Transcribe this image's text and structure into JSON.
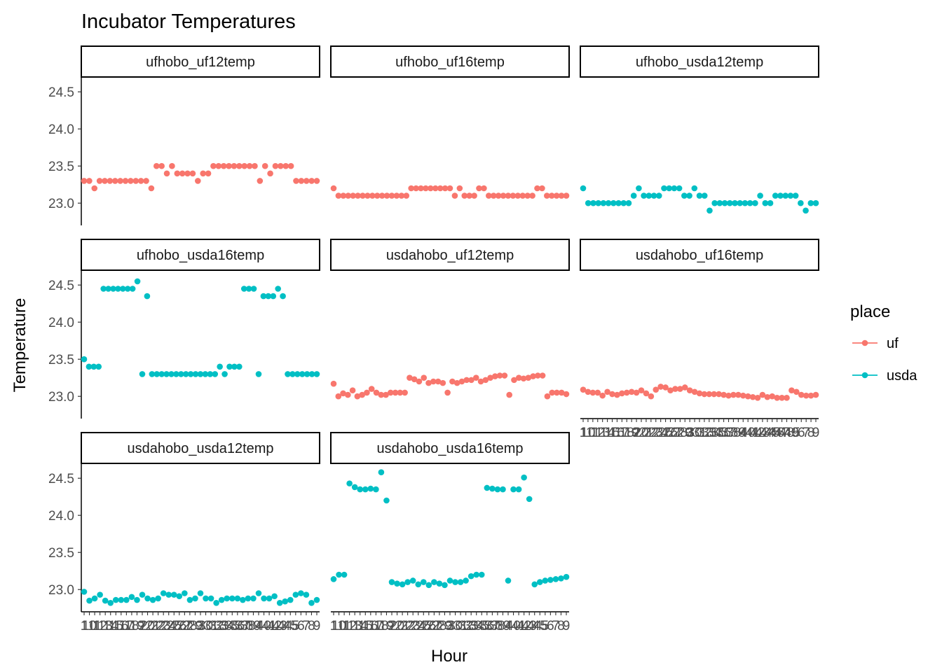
{
  "chart_data": {
    "type": "scatter",
    "title": "Incubator Temperatures",
    "xlabel": "Hour",
    "ylabel": "Temperature",
    "ylim": [
      22.7,
      24.7
    ],
    "y_ticks": [
      "23.0",
      "23.5",
      "24.0",
      "24.5"
    ],
    "x_axis": "discrete hours 1–49 (lexical order), tick labels overlapping",
    "facets_layout": "3 columns x 3 rows, free x, shared y",
    "legend": {
      "title": "place",
      "position": "right",
      "entries": [
        {
          "name": "uf",
          "color": "#F8766D"
        },
        {
          "name": "usda",
          "color": "#00BFC4"
        }
      ]
    },
    "panels": [
      {
        "name": "ufhobo_uf12temp",
        "place": "uf",
        "values": [
          23.3,
          23.3,
          23.2,
          23.3,
          23.3,
          23.3,
          23.3,
          23.3,
          23.3,
          23.3,
          23.3,
          23.3,
          23.3,
          23.2,
          23.5,
          23.5,
          23.4,
          23.5,
          23.4,
          23.4,
          23.4,
          23.4,
          23.3,
          23.4,
          23.4,
          23.5,
          23.5,
          23.5,
          23.5,
          23.5,
          23.5,
          23.5,
          23.5,
          23.5,
          23.3,
          23.5,
          23.4,
          23.5,
          23.5,
          23.5,
          23.5,
          23.3,
          23.3,
          23.3,
          23.3,
          23.3
        ]
      },
      {
        "name": "ufhobo_uf16temp",
        "place": "uf",
        "values": [
          23.2,
          23.1,
          23.1,
          23.1,
          23.1,
          23.1,
          23.1,
          23.1,
          23.1,
          23.1,
          23.1,
          23.1,
          23.1,
          23.1,
          23.1,
          23.1,
          23.2,
          23.2,
          23.2,
          23.2,
          23.2,
          23.2,
          23.2,
          23.2,
          23.2,
          23.1,
          23.2,
          23.1,
          23.1,
          23.1,
          23.2,
          23.2,
          23.1,
          23.1,
          23.1,
          23.1,
          23.1,
          23.1,
          23.1,
          23.1,
          23.1,
          23.1,
          23.2,
          23.2,
          23.1,
          23.1,
          23.1,
          23.1,
          23.1
        ]
      },
      {
        "name": "ufhobo_usda12temp",
        "place": "usda",
        "values": [
          23.2,
          23.0,
          23.0,
          23.0,
          23.0,
          23.0,
          23.0,
          23.0,
          23.0,
          23.0,
          23.1,
          23.2,
          23.1,
          23.1,
          23.1,
          23.1,
          23.2,
          23.2,
          23.2,
          23.2,
          23.1,
          23.1,
          23.2,
          23.1,
          23.1,
          22.9,
          23.0,
          23.0,
          23.0,
          23.0,
          23.0,
          23.0,
          23.0,
          23.0,
          23.0,
          23.1,
          23.0,
          23.0,
          23.1,
          23.1,
          23.1,
          23.1,
          23.1,
          23.0,
          22.9,
          23.0,
          23.0
        ]
      },
      {
        "name": "ufhobo_usda16temp",
        "place": "usda",
        "values": [
          23.5,
          23.4,
          23.4,
          23.4,
          24.45,
          24.45,
          24.45,
          24.45,
          24.45,
          24.45,
          24.45,
          24.55,
          23.3,
          24.35,
          23.3,
          23.3,
          23.3,
          23.3,
          23.3,
          23.3,
          23.3,
          23.3,
          23.3,
          23.3,
          23.3,
          23.3,
          23.3,
          23.3,
          23.4,
          23.3,
          23.4,
          23.4,
          23.4,
          24.45,
          24.45,
          24.45,
          23.3,
          24.35,
          24.35,
          24.35,
          24.45,
          24.35,
          23.3,
          23.3,
          23.3,
          23.3,
          23.3,
          23.3,
          23.3
        ]
      },
      {
        "name": "usdahobo_uf12temp",
        "place": "uf",
        "values": [
          23.17,
          23.0,
          23.04,
          23.02,
          23.08,
          23.0,
          23.02,
          23.05,
          23.1,
          23.05,
          23.02,
          23.02,
          23.05,
          23.05,
          23.05,
          23.05,
          23.25,
          23.23,
          23.2,
          23.25,
          23.18,
          23.2,
          23.2,
          23.18,
          23.05,
          23.2,
          23.18,
          23.2,
          23.22,
          23.22,
          23.25,
          23.2,
          23.22,
          23.25,
          23.27,
          23.28,
          23.28,
          23.02,
          23.22,
          23.25,
          23.24,
          23.25,
          23.27,
          23.28,
          23.28,
          23.0,
          23.05,
          23.05,
          23.05,
          23.03
        ]
      },
      {
        "name": "usdahobo_uf16temp",
        "place": "uf",
        "values": [
          23.09,
          23.06,
          23.05,
          23.05,
          23.01,
          23.06,
          23.03,
          23.02,
          23.04,
          23.05,
          23.06,
          23.05,
          23.08,
          23.04,
          23.0,
          23.09,
          23.13,
          23.12,
          23.08,
          23.1,
          23.1,
          23.12,
          23.08,
          23.06,
          23.04,
          23.03,
          23.03,
          23.03,
          23.03,
          23.02,
          23.01,
          23.02,
          23.02,
          23.01,
          23.0,
          22.99,
          22.98,
          23.02,
          22.99,
          23.0,
          22.98,
          22.98,
          22.98,
          23.08,
          23.06,
          23.02,
          23.01,
          23.01,
          23.02
        ]
      },
      {
        "name": "usdahobo_usda12temp",
        "place": "usda",
        "values": [
          22.97,
          22.85,
          22.88,
          22.93,
          22.85,
          22.82,
          22.86,
          22.86,
          22.86,
          22.9,
          22.86,
          22.93,
          22.88,
          22.86,
          22.88,
          22.95,
          22.93,
          22.93,
          22.91,
          22.95,
          22.86,
          22.88,
          22.95,
          22.88,
          22.88,
          22.82,
          22.86,
          22.88,
          22.88,
          22.88,
          22.86,
          22.88,
          22.88,
          22.95,
          22.88,
          22.88,
          22.91,
          22.82,
          22.84,
          22.86,
          22.93,
          22.95,
          22.93,
          22.82,
          22.86
        ]
      },
      {
        "name": "usdahobo_usda16temp",
        "place": "usda",
        "values": [
          23.14,
          23.2,
          23.2,
          24.43,
          24.38,
          24.35,
          24.35,
          24.36,
          24.35,
          24.58,
          24.2,
          23.1,
          23.08,
          23.07,
          23.1,
          23.12,
          23.07,
          23.1,
          23.06,
          23.1,
          23.08,
          23.06,
          23.12,
          23.1,
          23.1,
          23.12,
          23.18,
          23.2,
          23.2,
          24.37,
          24.36,
          24.35,
          24.35,
          23.12,
          24.35,
          24.35,
          24.51,
          24.22,
          23.07,
          23.1,
          23.12,
          23.13,
          23.14,
          23.15,
          23.17
        ]
      }
    ]
  }
}
